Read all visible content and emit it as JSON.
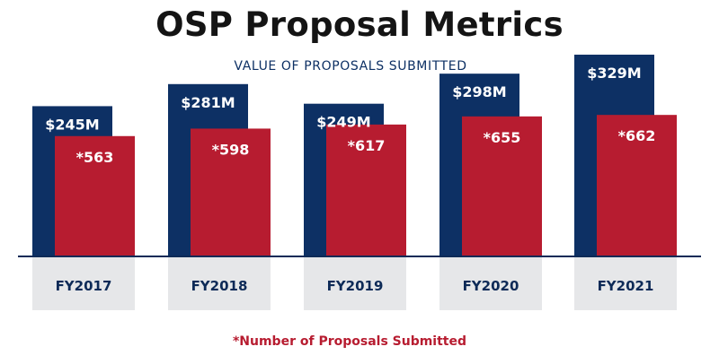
{
  "title": "OSP Proposal Metrics",
  "subtitle": "VALUE OF PROPOSALS SUBMITTED",
  "footnote": "*Number of Proposals Submitted",
  "colors": {
    "value_bar": "#0d3064",
    "count_bar": "#b71c30",
    "category_box": "#e6e7e9",
    "baseline": "#0d2a57"
  },
  "chart_data": {
    "type": "bar",
    "title": "OSP Proposal Metrics",
    "subtitle": "VALUE OF PROPOSALS SUBMITTED",
    "categories": [
      "FY2017",
      "FY2018",
      "FY2019",
      "FY2020",
      "FY2021"
    ],
    "series": [
      {
        "name": "Value of Proposals Submitted",
        "unit": "$M",
        "values": [
          245,
          281,
          249,
          298,
          329
        ],
        "labels": [
          "$245M",
          "$281M",
          "$249M",
          "$298M",
          "$329M"
        ]
      },
      {
        "name": "Number of Proposals Submitted",
        "values": [
          563,
          598,
          617,
          655,
          662
        ],
        "labels": [
          "*563",
          "*598",
          "*617",
          "*655",
          "*662"
        ]
      }
    ],
    "legend_note": "*Number of Proposals Submitted",
    "grid": false
  }
}
